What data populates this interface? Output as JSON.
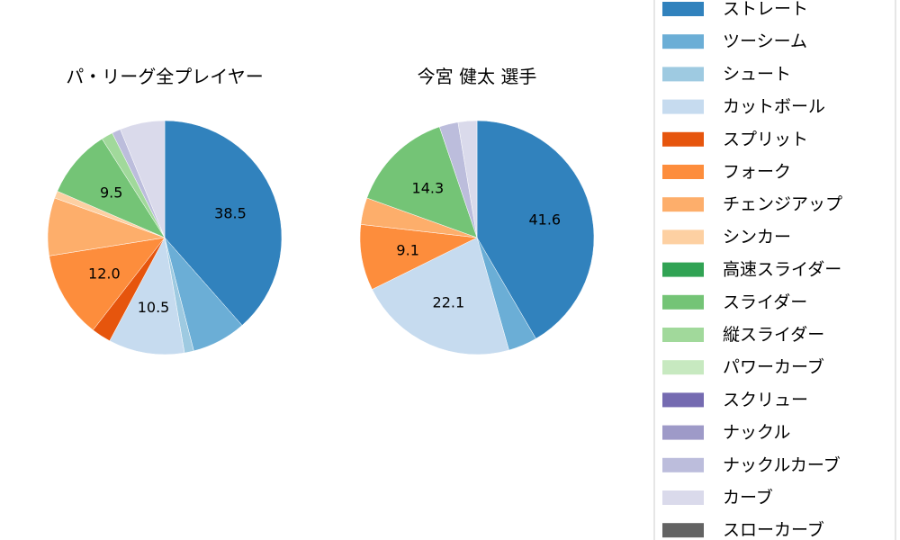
{
  "chart_data": [
    {
      "type": "pie",
      "title": "パ・リーグ全プレイヤー",
      "categories": [
        "ストレート",
        "ツーシーム",
        "シュート",
        "カットボール",
        "スプリット",
        "フォーク",
        "チェンジアップ",
        "シンカー",
        "スライダー",
        "縦スライダー",
        "ナックルカーブ",
        "カーブ"
      ],
      "values": [
        38.5,
        7.5,
        1.3,
        10.5,
        2.7,
        12.0,
        8.0,
        1.0,
        9.5,
        1.6,
        1.2,
        6.2
      ],
      "labels": [
        "38.5",
        "",
        "",
        "10.5",
        "",
        "12.0",
        "",
        "",
        "9.5",
        "",
        "",
        ""
      ]
    },
    {
      "type": "pie",
      "title": "今宮 健太  選手",
      "categories": [
        "ストレート",
        "ツーシーム",
        "カットボール",
        "フォーク",
        "チェンジアップ",
        "スライダー",
        "ナックルカーブ",
        "カーブ"
      ],
      "values": [
        41.6,
        4.0,
        22.1,
        9.1,
        3.7,
        14.3,
        2.6,
        2.6
      ],
      "labels": [
        "41.6",
        "",
        "22.1",
        "9.1",
        "",
        "14.3",
        "",
        ""
      ]
    }
  ],
  "legend": {
    "placement": "right",
    "items": [
      {
        "label": "ストレート",
        "color": "#3182bd"
      },
      {
        "label": "ツーシーム",
        "color": "#6baed6"
      },
      {
        "label": "シュート",
        "color": "#9ecae1"
      },
      {
        "label": "カットボール",
        "color": "#c6dbef"
      },
      {
        "label": "スプリット",
        "color": "#e6550d"
      },
      {
        "label": "フォーク",
        "color": "#fd8d3c"
      },
      {
        "label": "チェンジアップ",
        "color": "#fdae6b"
      },
      {
        "label": "シンカー",
        "color": "#fdd0a2"
      },
      {
        "label": "高速スライダー",
        "color": "#31a354"
      },
      {
        "label": "スライダー",
        "color": "#74c476"
      },
      {
        "label": "縦スライダー",
        "color": "#a1d99b"
      },
      {
        "label": "パワーカーブ",
        "color": "#c7e9c0"
      },
      {
        "label": "スクリュー",
        "color": "#756bb1"
      },
      {
        "label": "ナックル",
        "color": "#9e9ac8"
      },
      {
        "label": "ナックルカーブ",
        "color": "#bcbddc"
      },
      {
        "label": "カーブ",
        "color": "#dadaeb"
      },
      {
        "label": "スローカーブ",
        "color": "#636363"
      }
    ]
  }
}
